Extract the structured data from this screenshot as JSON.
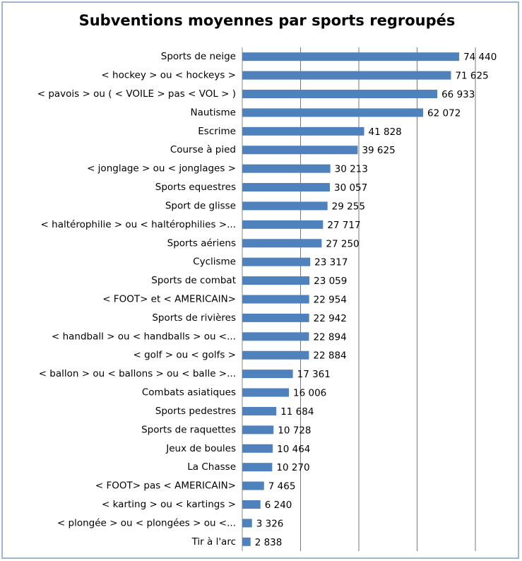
{
  "chart_data": {
    "type": "bar",
    "orientation": "horizontal",
    "title": "Subventions moyennes par sports regroupés",
    "categories": [
      "Sports de neige",
      "< hockey > ou < hockeys >",
      "< pavois > ou ( < VOILE > pas < VOL > )",
      "Nautisme",
      "Escrime",
      "Course à pied",
      "< jonglage  > ou < jonglages >",
      "Sports equestres",
      "Sport de glisse",
      "< haltérophilie > ou < haltérophilies >...",
      "Sports aériens",
      "Cyclisme",
      "Sports de combat",
      "< FOOT> et < AMERICAIN>",
      "Sports de rivières",
      "< handball > ou < handballs > ou <...",
      "< golf > ou < golfs >",
      "< ballon > ou < ballons > ou < balle >...",
      "Combats asiatiques",
      "Sports pedestres",
      "Sports de raquettes",
      "Jeux de boules",
      "La Chasse",
      "< FOOT> pas < AMERICAIN>",
      "< karting > ou < kartings >",
      "< plongée > ou < plongées > ou <...",
      "Tir à l'arc"
    ],
    "values": [
      74440,
      71625,
      66933,
      62072,
      41828,
      39625,
      30213,
      30057,
      29255,
      27717,
      27250,
      23317,
      23059,
      22954,
      22942,
      22894,
      22884,
      17361,
      16006,
      11684,
      10728,
      10464,
      10270,
      7465,
      6240,
      3326,
      2838
    ],
    "value_labels": [
      "74 440",
      "71 625",
      "66 933",
      "62 072",
      "41 828",
      "39 625",
      "30 213",
      "30 057",
      "29 255",
      "27 717",
      "27 250",
      "23 317",
      "23 059",
      "22 954",
      "22 942",
      "22 894",
      "22 884",
      "17 361",
      "16 006",
      "11 684",
      "10 728",
      "10 464",
      "10 270",
      "7 465",
      "6 240",
      "3 326",
      "2 838"
    ],
    "color": "#4f81bd",
    "xlim": [
      0,
      80000
    ],
    "xticks": [
      0,
      20000,
      40000,
      60000,
      80000
    ],
    "grid": true
  }
}
